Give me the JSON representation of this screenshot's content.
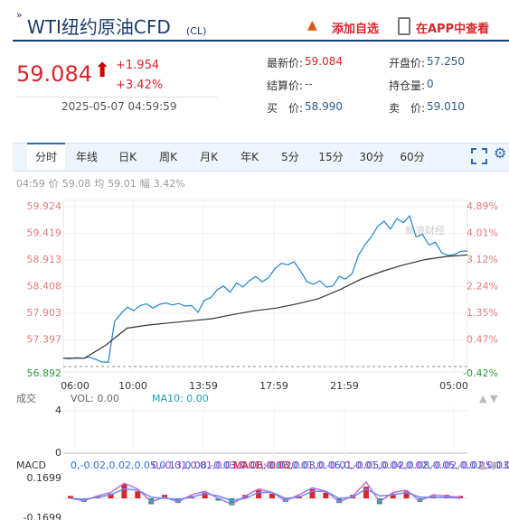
{
  "header": {
    "title": "WTI纽约原油CFD",
    "code": "(CL)",
    "add_watch": "添加自选",
    "open_app": "在APP中查看"
  },
  "quote": {
    "price": "59.084",
    "change": "+1.954",
    "change_pct": "+3.42%",
    "time": "2025-05-07 04:59:59"
  },
  "info": [
    {
      "label": "最新价:",
      "value": "59.084"
    },
    {
      "label": "开盘价:",
      "value": "57.250"
    },
    {
      "label": "结算价:",
      "value": "--"
    },
    {
      "label": "持仓量:",
      "value": "0"
    },
    {
      "label": "买　价:",
      "value": "58.990"
    },
    {
      "label": "卖　价:",
      "value": "59.010"
    }
  ],
  "tabs": [
    "分时",
    "年线",
    "日K",
    "周K",
    "月K",
    "年K",
    "5分",
    "15分",
    "30分",
    "60分"
  ],
  "status": [
    "04:59",
    "价",
    "59.08",
    "均",
    "59.01",
    "幅",
    "3.42%"
  ],
  "chart": {
    "type": "line",
    "watermark": "新浪财经",
    "ylim": [
      56.892,
      59.924
    ],
    "yticks": [
      59.924,
      59.419,
      58.913,
      58.408,
      57.903,
      57.397,
      56.892
    ],
    "right_labels": [
      "4.89%",
      "4.01%",
      "3.12%",
      "2.24%",
      "1.35%",
      "0.47%",
      "-0.42%"
    ],
    "x_labels": [
      "06:00",
      "10:00",
      "13:59",
      "17:59",
      "21:59",
      "05:00"
    ],
    "series": [
      {
        "name": "价",
        "color": "#1f86c7",
        "values": [
          57.05,
          57.04,
          57.06,
          57.05,
          57.07,
          57.03,
          56.98,
          56.97,
          57.75,
          57.9,
          58.02,
          57.95,
          58.05,
          58.08,
          58.0,
          58.07,
          58.1,
          58.06,
          58.09,
          58.04,
          58.05,
          57.92,
          58.15,
          58.2,
          58.35,
          58.42,
          58.3,
          58.48,
          58.4,
          58.52,
          58.6,
          58.5,
          58.58,
          58.75,
          58.85,
          58.82,
          58.88,
          58.7,
          58.5,
          58.45,
          58.52,
          58.4,
          58.42,
          58.6,
          58.55,
          58.65,
          59.0,
          59.2,
          59.35,
          59.55,
          59.65,
          59.5,
          59.7,
          59.62,
          59.75,
          59.35,
          59.4,
          59.2,
          59.25,
          59.05,
          59.0,
          59.02,
          59.08,
          59.084
        ]
      },
      {
        "name": "均",
        "color": "#333333",
        "values": [
          57.05,
          57.05,
          57.3,
          57.62,
          57.68,
          57.72,
          57.76,
          57.8,
          57.88,
          57.95,
          58.0,
          58.08,
          58.18,
          58.35,
          58.55,
          58.7,
          58.82,
          58.92,
          58.98,
          59.01
        ]
      }
    ]
  },
  "volume": {
    "label": "成交",
    "vol": "VOL: 0.00",
    "ma10": "MA10: 0.00",
    "ticks": [
      4,
      0
    ]
  },
  "macd": {
    "label": "MACD",
    "dif": [
      0.0,
      -0.02,
      0.02,
      0.05,
      0.13,
      0.08,
      -0.03,
      0.01,
      -0.03,
      0.03,
      0.06,
      0.0,
      -0.05,
      0.02,
      0.08,
      0.05,
      -0.02,
      0.03,
      0.09,
      0.06,
      -0.03,
      0.02,
      0.14,
      -0.03,
      0.05,
      0.07,
      -0.02,
      0.03,
      0.02,
      0.01
    ],
    "dea": [
      0.0,
      -0.01,
      0.01,
      0.03,
      0.08,
      0.07,
      0.01,
      0.0,
      -0.01,
      0.01,
      0.04,
      0.02,
      -0.02,
      0.0,
      0.05,
      0.05,
      0.0,
      0.01,
      0.06,
      0.06,
      0.0,
      0.01,
      0.08,
      0.02,
      0.03,
      0.05,
      0.01,
      0.01,
      0.01,
      0.0
    ],
    "macd": "MACD: 0.02",
    "lim": [
      -0.1699,
      0.1699
    ],
    "hist": [
      0.02,
      -0.03,
      0.01,
      0.04,
      0.12,
      0.06,
      -0.05,
      0.03,
      -0.04,
      0.02,
      0.05,
      -0.02,
      -0.06,
      0.03,
      0.07,
      0.04,
      -0.03,
      0.02,
      0.08,
      0.05,
      -0.04,
      0.03,
      0.1,
      -0.05,
      0.04,
      0.06,
      -0.03,
      0.02,
      0.03,
      0.02
    ]
  }
}
